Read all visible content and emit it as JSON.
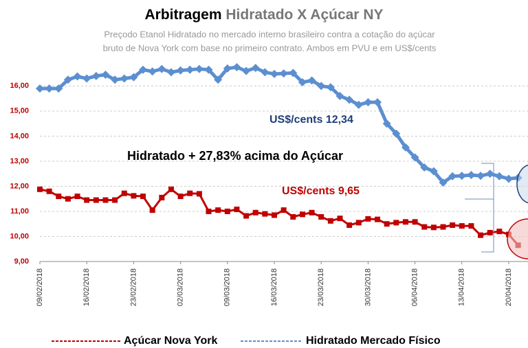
{
  "chart_data": {
    "type": "line",
    "title": [
      "Arbitragem",
      "Hidratado X Açúcar NY"
    ],
    "subtitle": [
      "Preçodo Etanol Hidratado no mercado interno brasileiro  contra a cotação do açúcar",
      "bruto de Nova York  com base no primeiro contrato. Ambos em PVU e em US$/cents"
    ],
    "categories": [
      "09/02/2018",
      null,
      null,
      null,
      null,
      "16/02/2018",
      null,
      null,
      null,
      null,
      "23/02/2018",
      null,
      null,
      null,
      null,
      "02/03/2018",
      null,
      null,
      null,
      null,
      "09/03/2018",
      null,
      null,
      null,
      null,
      "16/03/2018",
      null,
      null,
      null,
      null,
      "23/03/2018",
      null,
      null,
      null,
      null,
      "30/03/2018",
      null,
      null,
      null,
      null,
      "06/04/2018",
      null,
      null,
      null,
      null,
      "13/04/2018",
      null,
      null,
      null,
      null,
      "20/04/2018",
      null
    ],
    "series": [
      {
        "name": "Açúcar Nova York",
        "color": "#c00000",
        "marker": "square",
        "values": [
          11.88,
          11.8,
          11.6,
          11.5,
          11.6,
          11.45,
          11.45,
          11.45,
          11.45,
          11.72,
          11.62,
          11.6,
          11.05,
          11.55,
          11.88,
          11.6,
          11.72,
          11.7,
          11.0,
          11.05,
          11.0,
          11.08,
          10.82,
          10.95,
          10.9,
          10.85,
          11.05,
          10.78,
          10.88,
          10.95,
          10.78,
          10.62,
          10.72,
          10.45,
          10.55,
          10.7,
          10.68,
          10.5,
          10.55,
          10.58,
          10.58,
          10.38,
          10.36,
          10.38,
          10.45,
          10.42,
          10.42,
          10.05,
          10.15,
          10.2,
          10.08,
          9.65
        ]
      },
      {
        "name": "Hidratado  Mercado  Físico",
        "color": "#5b8fd0",
        "marker": "diamond",
        "values": [
          15.9,
          15.9,
          15.9,
          16.25,
          16.38,
          16.3,
          16.4,
          16.45,
          16.25,
          16.3,
          16.35,
          16.65,
          16.58,
          16.68,
          16.55,
          16.62,
          16.65,
          16.68,
          16.65,
          16.25,
          16.7,
          16.75,
          16.6,
          16.72,
          16.55,
          16.48,
          16.5,
          16.52,
          16.15,
          16.22,
          16.0,
          15.95,
          15.6,
          15.45,
          15.25,
          15.35,
          15.35,
          14.5,
          14.1,
          13.55,
          13.15,
          12.75,
          12.6,
          12.15,
          12.4,
          12.42,
          12.45,
          12.42,
          12.5,
          12.4,
          12.3,
          12.34
        ]
      }
    ],
    "ylim": [
      9,
      16.2
    ],
    "yticks": [
      {
        "value": 9,
        "label": "9,00"
      },
      {
        "value": 10,
        "label": "10,00"
      },
      {
        "value": 11,
        "label": "11,00"
      },
      {
        "value": 12,
        "label": "12,00"
      },
      {
        "value": 13,
        "label": "13,00"
      },
      {
        "value": 14,
        "label": "14,00"
      },
      {
        "value": 15,
        "label": "15,00"
      },
      {
        "value": 16,
        "label": "16,00"
      }
    ],
    "grid": true,
    "annotations": [
      {
        "text": "US$/cents  12,34",
        "color": "#1f3d7a"
      },
      {
        "text": "Hidratado + 27,83% acima do Açúcar",
        "color": "#000000"
      },
      {
        "text": "US$/cents  9,65",
        "color": "#c00000"
      }
    ]
  }
}
